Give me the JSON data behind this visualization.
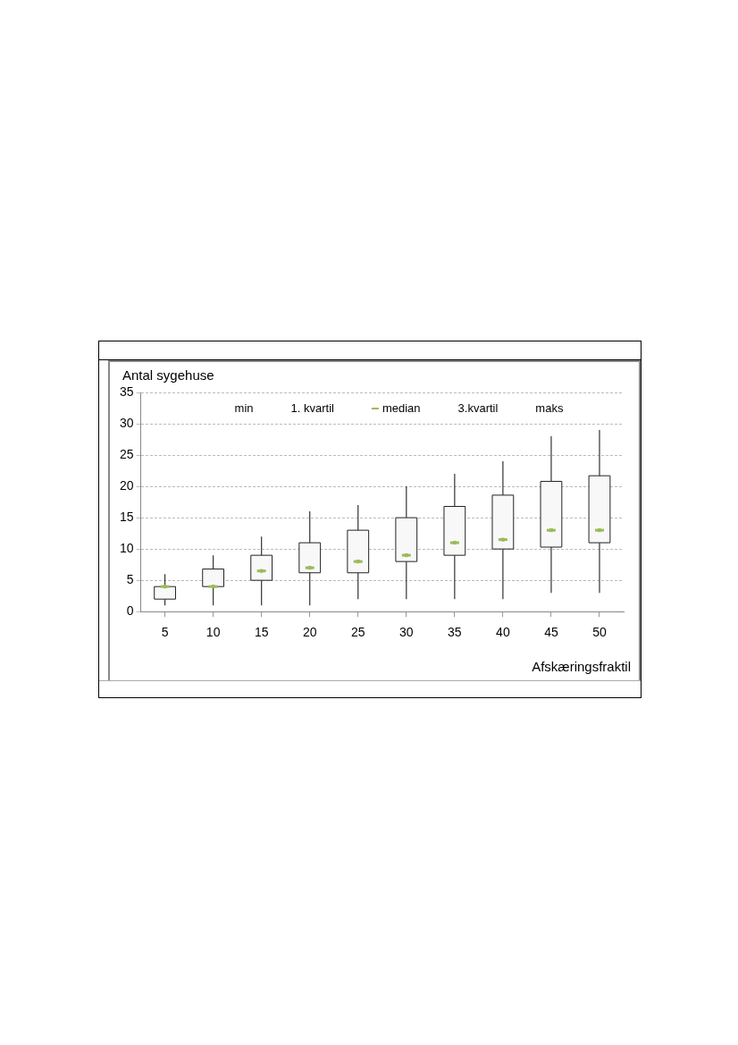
{
  "chart_data": {
    "type": "box",
    "xlabel": "Afskæringsfraktil",
    "ylabel": "Antal sygehuse",
    "categories": [
      "5",
      "10",
      "15",
      "20",
      "25",
      "30",
      "35",
      "40",
      "45",
      "50"
    ],
    "boxes": [
      {
        "low": 1,
        "q1": 2,
        "median": 4,
        "q3": 4,
        "high": 6
      },
      {
        "low": 1,
        "q1": 4,
        "median": 4,
        "q3": 6.8,
        "high": 9
      },
      {
        "low": 1,
        "q1": 5,
        "median": 6.5,
        "q3": 9,
        "high": 12
      },
      {
        "low": 1,
        "q1": 6.2,
        "median": 7,
        "q3": 11,
        "high": 16
      },
      {
        "low": 2,
        "q1": 6.2,
        "median": 8,
        "q3": 13,
        "high": 17
      },
      {
        "low": 2,
        "q1": 8,
        "median": 9,
        "q3": 15,
        "high": 20
      },
      {
        "low": 2,
        "q1": 9,
        "median": 11,
        "q3": 16.8,
        "high": 22
      },
      {
        "low": 2,
        "q1": 10,
        "median": 11.5,
        "q3": 18.6,
        "high": 24
      },
      {
        "low": 3,
        "q1": 10.3,
        "median": 13,
        "q3": 20.8,
        "high": 28
      },
      {
        "low": 3,
        "q1": 11,
        "median": 13,
        "q3": 21.7,
        "high": 29
      }
    ],
    "series": [
      {
        "type": "scatter",
        "name": "median",
        "color": "#9bbb59",
        "x": [
          "5",
          "10",
          "15",
          "20",
          "25",
          "30",
          "35",
          "40",
          "45",
          "50"
        ],
        "values": [
          4,
          4,
          6.5,
          7,
          8,
          9,
          11,
          11.5,
          13,
          13
        ]
      }
    ],
    "annotations": [
      "min",
      "1. kvartil",
      "3.kvartil",
      "maks"
    ],
    "ylim": [
      0,
      35
    ],
    "yticks": [
      0,
      5,
      10,
      15,
      20,
      25,
      30,
      35
    ],
    "grid": "y",
    "legend": "top"
  }
}
